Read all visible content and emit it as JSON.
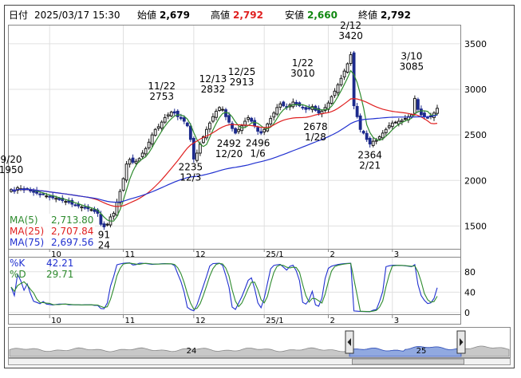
{
  "header": {
    "date_label": "日付",
    "datetime": "2025/03/17 15:30",
    "open_label": "始値",
    "open_value": "2,679",
    "high_label": "高値",
    "high_value": "2,792",
    "low_label": "安値",
    "low_value": "2,660",
    "close_label": "終値",
    "close_value": "2,792"
  },
  "colors": {
    "up": "#1a1a1a",
    "down": "#1d2a8c",
    "ma5": "#2e8b2e",
    "ma25": "#e02020",
    "ma75": "#2030d0",
    "k": "#2030d0",
    "d": "#2e8b2e",
    "high": "#e02020",
    "low": "#118811",
    "volume": "#7f9fe8"
  },
  "legend": {
    "ma5_label": "MA(5)",
    "ma5_value": "2,713.80",
    "ma25_label": "MA(25)",
    "ma25_value": "2,707.84",
    "ma75_label": "MA(75)",
    "ma75_value": "2,697.56",
    "k_label": "%K",
    "k_value": "42.21",
    "d_label": "%D",
    "d_value": "29.71"
  },
  "chart_data": [
    {
      "type": "candlestick",
      "y_ticks": [
        "3500",
        "3000",
        "2500",
        "2000",
        "1500"
      ],
      "ylim": [
        1250,
        3700
      ],
      "x_tick_labels": [
        "10",
        "11",
        "12",
        "25/1",
        "2",
        "3"
      ],
      "x_tick_index": [
        12,
        35,
        57,
        79,
        99,
        119
      ],
      "annotations": [
        {
          "text": [
            "9/20",
            "1950"
          ],
          "index": 0,
          "value": 1950
        },
        {
          "text": [
            "11/22",
            "2753"
          ],
          "index": 47,
          "value": 2753
        },
        {
          "text": [
            "12/13",
            "2832"
          ],
          "index": 63,
          "value": 2832
        },
        {
          "text": [
            "12/25",
            "2913"
          ],
          "index": 72,
          "value": 2913
        },
        {
          "text": [
            "1/22",
            "3010"
          ],
          "index": 91,
          "value": 3010
        },
        {
          "text": [
            "2/12",
            "3420"
          ],
          "index": 106,
          "value": 3420
        },
        {
          "text": [
            "3/10",
            "3085"
          ],
          "index": 125,
          "value": 3085
        },
        {
          "text": [
            "2235",
            "12/3"
          ],
          "index": 56,
          "value": 2235
        },
        {
          "text": [
            "2492",
            "12/20"
          ],
          "index": 68,
          "value": 2492
        },
        {
          "text": [
            "2496",
            "1/6"
          ],
          "index": 77,
          "value": 2496
        },
        {
          "text": [
            "2678",
            "1/28"
          ],
          "index": 95,
          "value": 2678
        },
        {
          "text": [
            "2364",
            "2/21"
          ],
          "index": 112,
          "value": 2364
        },
        {
          "text": [
            "91",
            "24"
          ],
          "index": 29,
          "value": 1491
        }
      ],
      "closes": [
        1900,
        1880,
        1920,
        1910,
        1895,
        1905,
        1890,
        1870,
        1860,
        1845,
        1850,
        1830,
        1820,
        1810,
        1805,
        1790,
        1780,
        1770,
        1760,
        1740,
        1730,
        1720,
        1710,
        1700,
        1690,
        1680,
        1660,
        1640,
        1520,
        1491,
        1520,
        1600,
        1640,
        1760,
        1880,
        2020,
        2180,
        2230,
        2200,
        2210,
        2240,
        2300,
        2350,
        2420,
        2500,
        2560,
        2590,
        2640,
        2690,
        2720,
        2750,
        2740,
        2700,
        2680,
        2650,
        2600,
        2450,
        2235,
        2300,
        2400,
        2480,
        2560,
        2630,
        2700,
        2760,
        2800,
        2780,
        2700,
        2640,
        2570,
        2520,
        2560,
        2600,
        2650,
        2690,
        2650,
        2600,
        2540,
        2520,
        2560,
        2620,
        2680,
        2740,
        2800,
        2840,
        2820,
        2800,
        2830,
        2860,
        2840,
        2820,
        2800,
        2780,
        2790,
        2810,
        2770,
        2740,
        2760,
        2800,
        2850,
        2920,
        2980,
        3050,
        3120,
        3200,
        3280,
        3380,
        2820,
        2700,
        2560,
        2520,
        2450,
        2400,
        2430,
        2440,
        2480,
        2520,
        2560,
        2600,
        2630,
        2640,
        2650,
        2660,
        2680,
        2700,
        2720,
        2900,
        2780,
        2720,
        2700,
        2690,
        2710,
        2740,
        2792
      ],
      "series_labels": [
        "MA(5)",
        "MA(25)",
        "MA(75)"
      ],
      "series_colors": [
        "#2e8b2e",
        "#e02020",
        "#2030d0"
      ]
    },
    {
      "type": "line",
      "y_ticks": [
        "80",
        "40",
        "0"
      ],
      "ylim": [
        0,
        100
      ],
      "x_tick_labels": [
        "10",
        "11",
        "12",
        "25/1",
        "2",
        "3"
      ],
      "series_labels": [
        "%K",
        "%D"
      ]
    },
    {
      "type": "area",
      "x_tick_labels": [
        "24",
        "25"
      ],
      "x_tick_index": [
        57,
        122
      ]
    }
  ]
}
